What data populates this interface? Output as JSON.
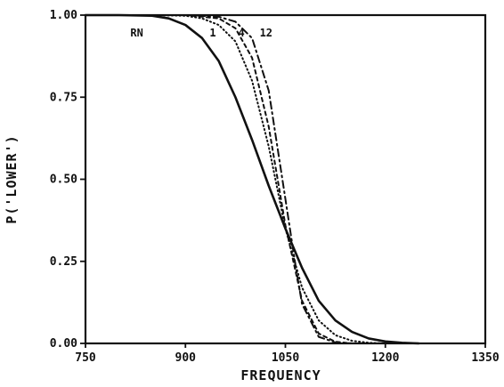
{
  "chart_data": {
    "type": "line",
    "title": "",
    "xlabel": "FREQUENCY",
    "ylabel": "P('LOWER')",
    "xlim": [
      750,
      1350
    ],
    "ylim": [
      0.0,
      1.0
    ],
    "xticks": [
      "750",
      "900",
      "1050",
      "1200",
      "1350"
    ],
    "yticks": [
      "0.00",
      "0.25",
      "0.50",
      "0.75",
      "1.00"
    ],
    "grid": false,
    "legend": "curve labels near top",
    "series": [
      {
        "name": "RN",
        "style": "solid",
        "x": [
          750,
          800,
          850,
          875,
          900,
          925,
          950,
          975,
          1000,
          1025,
          1050,
          1075,
          1100,
          1125,
          1150,
          1175,
          1200,
          1225,
          1250
        ],
        "y": [
          1.0,
          1.0,
          0.998,
          0.99,
          0.97,
          0.93,
          0.86,
          0.75,
          0.62,
          0.48,
          0.35,
          0.23,
          0.13,
          0.07,
          0.035,
          0.015,
          0.006,
          0.002,
          0.0
        ]
      },
      {
        "name": "1",
        "style": "dotted",
        "x": [
          750,
          850,
          900,
          925,
          950,
          975,
          1000,
          1025,
          1050,
          1075,
          1100,
          1125,
          1150,
          1175,
          1200
        ],
        "y": [
          1.0,
          1.0,
          0.998,
          0.99,
          0.97,
          0.92,
          0.8,
          0.6,
          0.35,
          0.17,
          0.07,
          0.025,
          0.008,
          0.002,
          0.0
        ]
      },
      {
        "name": "4",
        "style": "dashed",
        "x": [
          750,
          900,
          950,
          975,
          1000,
          1025,
          1050,
          1075,
          1100,
          1125,
          1150
        ],
        "y": [
          1.0,
          1.0,
          0.99,
          0.96,
          0.87,
          0.66,
          0.36,
          0.13,
          0.03,
          0.005,
          0.0
        ]
      },
      {
        "name": "12",
        "style": "dashdot",
        "x": [
          750,
          900,
          950,
          975,
          1000,
          1025,
          1050,
          1065,
          1075,
          1100,
          1125,
          1150
        ],
        "y": [
          1.0,
          1.0,
          0.995,
          0.98,
          0.93,
          0.77,
          0.44,
          0.24,
          0.12,
          0.02,
          0.003,
          0.0
        ]
      }
    ],
    "curve_labels": [
      {
        "text": "RN",
        "x": 827,
        "y": 0.935
      },
      {
        "text": "1",
        "x": 941,
        "y": 0.935
      },
      {
        "text": "4",
        "x": 984,
        "y": 0.935
      },
      {
        "text": "12",
        "x": 1021,
        "y": 0.935
      }
    ]
  }
}
